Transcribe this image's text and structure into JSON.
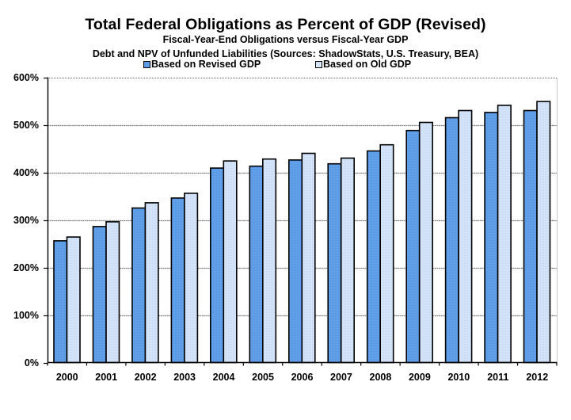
{
  "chart_data": {
    "type": "bar",
    "title": "Total Federal Obligations as Percent of GDP (Revised)",
    "subtitle": "Fiscal-Year-End Obligations versus Fiscal-Year GDP",
    "subtitle2": "Debt and NPV of Unfunded Liabilities (Sources: ShadowStats, U.S. Treasury, BEA)",
    "xlabel": "",
    "ylabel": "",
    "ylim": [
      0,
      600
    ],
    "yticks": [
      0,
      100,
      200,
      300,
      400,
      500,
      600
    ],
    "ytick_labels": [
      "0%",
      "100%",
      "200%",
      "300%",
      "400%",
      "500%",
      "600%"
    ],
    "grid": true,
    "legend_position": "top-center",
    "categories": [
      "2000",
      "2001",
      "2002",
      "2003",
      "2004",
      "2005",
      "2006",
      "2007",
      "2008",
      "2009",
      "2010",
      "2011",
      "2012"
    ],
    "series": [
      {
        "name": "Based on Revised GDP",
        "color": "#5b9be6",
        "values": [
          256,
          286,
          325,
          346,
          409,
          413,
          426,
          418,
          445,
          488,
          515,
          526,
          530
        ]
      },
      {
        "name": "Based on Old GDP",
        "color": "#d5e4f8",
        "values": [
          264,
          296,
          336,
          356,
          424,
          428,
          440,
          430,
          458,
          505,
          530,
          541,
          549
        ]
      }
    ]
  }
}
